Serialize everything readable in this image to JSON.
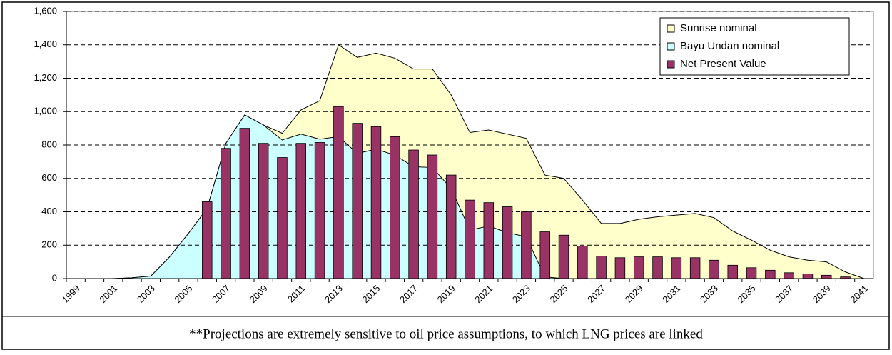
{
  "chart_data": {
    "type": "area",
    "categories": [
      "1999",
      null,
      "2001",
      null,
      "2003",
      null,
      "2005",
      null,
      "2007",
      null,
      "2009",
      null,
      "2011",
      null,
      "2013",
      null,
      "2015",
      null,
      "2017",
      null,
      "2019",
      null,
      "2021",
      null,
      "2023",
      null,
      "2025",
      null,
      "2027",
      null,
      "2029",
      null,
      "2031",
      null,
      "2033",
      null,
      "2035",
      null,
      "2037",
      null,
      "2039",
      null,
      "2041"
    ],
    "series": [
      {
        "name": "Sunrise nominal",
        "type": "area",
        "stacked_on": 1,
        "color": "#ffffcc",
        "values": [
          0,
          0,
          0,
          0,
          0,
          0,
          0,
          0,
          0,
          0,
          0,
          40,
          145,
          230,
          550,
          575,
          575,
          580,
          585,
          590,
          560,
          585,
          575,
          590,
          590,
          610,
          600,
          470,
          330,
          330,
          355,
          370,
          380,
          390,
          365,
          285,
          230,
          170,
          130,
          110,
          100,
          40,
          0
        ]
      },
      {
        "name": "Bayu Undan nominal",
        "type": "area",
        "color": "#ccffff",
        "values": [
          0,
          0,
          0,
          5,
          15,
          130,
          270,
          420,
          810,
          980,
          920,
          830,
          865,
          835,
          850,
          750,
          775,
          740,
          670,
          665,
          540,
          290,
          315,
          275,
          250,
          10,
          0,
          0,
          0,
          0,
          0,
          0,
          0,
          0,
          0,
          0,
          0,
          0,
          0,
          0,
          0,
          0,
          0
        ]
      },
      {
        "name": "Net Present Value",
        "type": "bar",
        "color": "#993366",
        "values": [
          null,
          null,
          null,
          null,
          null,
          null,
          null,
          460,
          780,
          900,
          810,
          725,
          810,
          815,
          1030,
          930,
          910,
          850,
          770,
          740,
          620,
          470,
          455,
          430,
          400,
          280,
          260,
          195,
          135,
          125,
          130,
          130,
          125,
          125,
          110,
          80,
          65,
          50,
          35,
          28,
          20,
          10,
          null
        ]
      }
    ],
    "ylim": [
      0,
      1600
    ],
    "yticks": [
      0,
      200,
      400,
      600,
      800,
      {
        "value": 1000,
        "label": "1,000"
      },
      {
        "value": 1200,
        "label": "1,200"
      },
      {
        "value": 1400,
        "label": "1,400"
      },
      {
        "value": 1600,
        "label": "1,600"
      }
    ],
    "grid": true,
    "legend": "top-right",
    "footnote": "**Projections are extremely sensitive to oil price assumptions, to which LNG prices are linked"
  }
}
